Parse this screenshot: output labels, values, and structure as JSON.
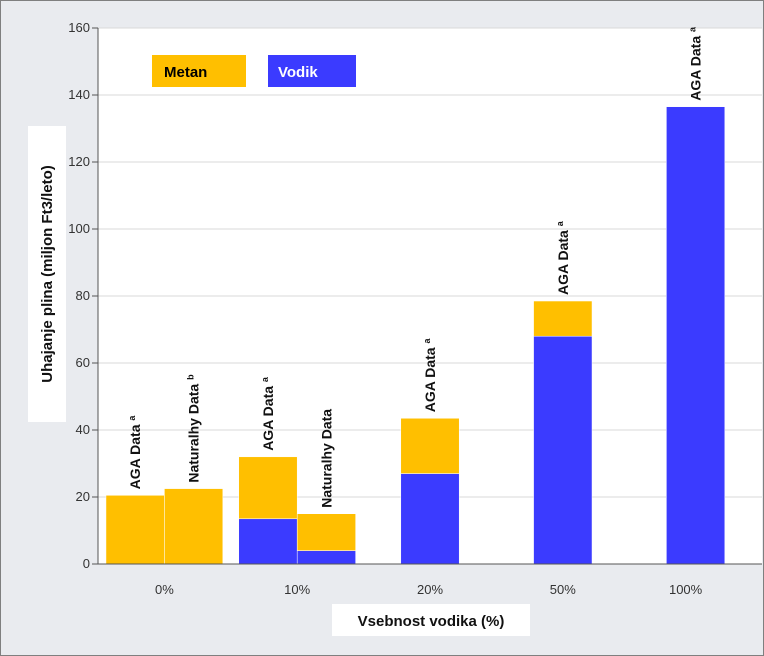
{
  "chart_data": {
    "type": "bar",
    "stacked": true,
    "title": "",
    "xlabel": "Vsebnost vodika (%)",
    "ylabel": "Uhajanje plina (miljon Ft3/leto)",
    "ylim": [
      0,
      160
    ],
    "yticks": [
      0,
      20,
      40,
      60,
      80,
      100,
      120,
      140,
      160
    ],
    "grid": true,
    "legend": "top-left",
    "colors": {
      "Metan": "#ffbf00",
      "Vodik": "#3b3bff"
    },
    "groups": [
      "0%",
      "10%",
      "20%",
      "50%",
      "100%"
    ],
    "bars": [
      {
        "group": "0%",
        "label": "AGA Data",
        "sup": "a",
        "Vodik": 0,
        "Metan": 20.5
      },
      {
        "group": "0%",
        "label": "Naturalhy Data",
        "sup": "b",
        "Vodik": 0,
        "Metan": 22.5
      },
      {
        "group": "10%",
        "label": "AGA Data",
        "sup": "a",
        "Vodik": 13.5,
        "Metan": 18.5
      },
      {
        "group": "10%",
        "label": "Naturalhy Data",
        "sup": "",
        "Vodik": 4,
        "Metan": 11
      },
      {
        "group": "20%",
        "label": "AGA Data",
        "sup": "a",
        "Vodik": 27,
        "Metan": 16.5
      },
      {
        "group": "50%",
        "label": "AGA Data",
        "sup": "a",
        "Vodik": 68,
        "Metan": 10.5
      },
      {
        "group": "100%",
        "label": "AGA Data",
        "sup": "a",
        "Vodik": 136.5,
        "Metan": 0
      }
    ],
    "series": [
      {
        "name": "Metan"
      },
      {
        "name": "Vodik"
      }
    ]
  }
}
